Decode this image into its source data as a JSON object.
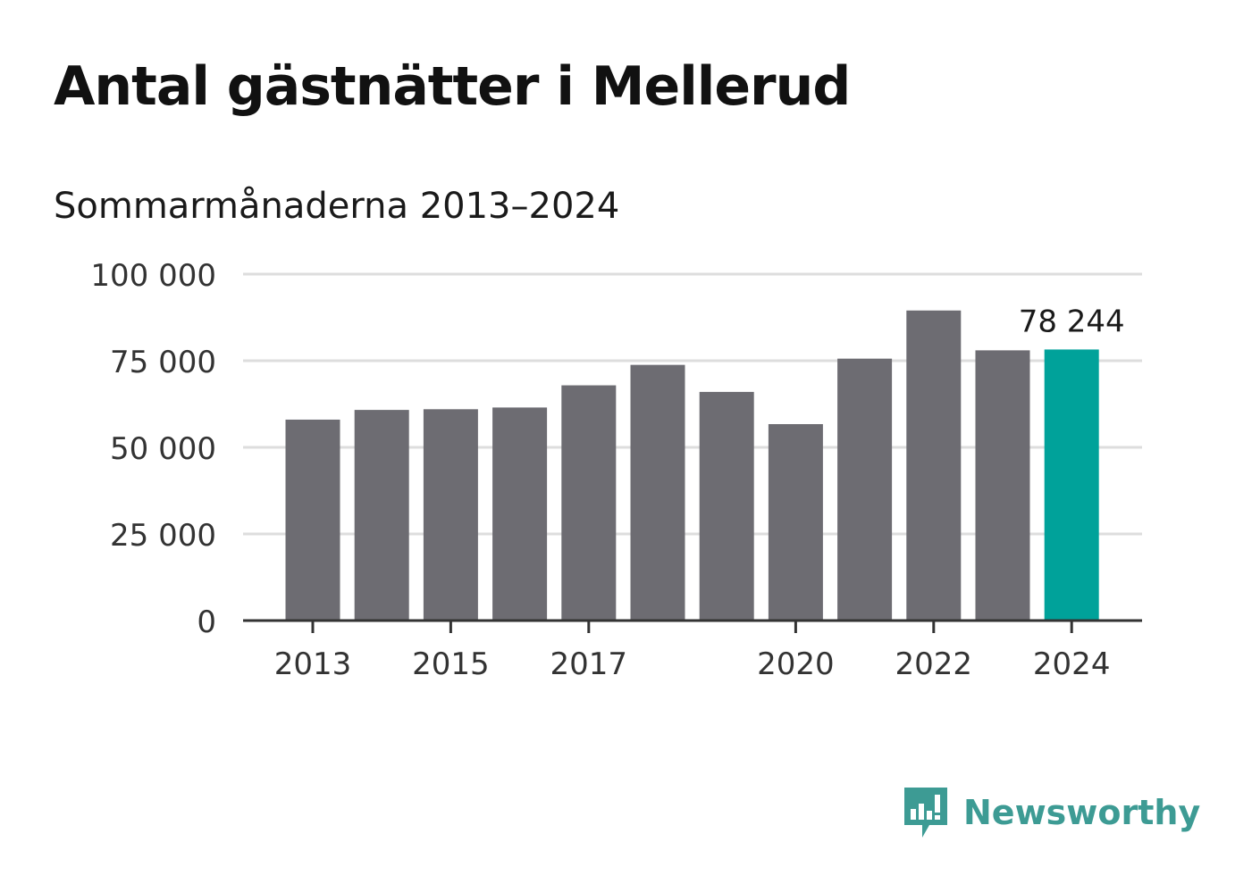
{
  "title": "Antal gästnätter i Mellerud",
  "subtitle": "Sommarmånaderna 2013–2024",
  "brand": {
    "name": "Newsworthy",
    "icon": "newsworthy-logo-icon",
    "color": "#3d9b94"
  },
  "colors": {
    "bar": "#6d6c72",
    "highlight": "#00a29a",
    "grid": "#dddddd",
    "axis": "#333333"
  },
  "chart_data": {
    "type": "bar",
    "categories": [
      "2013",
      "2014",
      "2015",
      "2016",
      "2017",
      "2018",
      "2019",
      "2020",
      "2021",
      "2022",
      "2023",
      "2024"
    ],
    "values": [
      58000,
      60800,
      61000,
      61500,
      67900,
      73800,
      66000,
      56700,
      75600,
      89500,
      78000,
      78244
    ],
    "x_tick_labels": [
      "2013",
      "2015",
      "2017",
      "2020",
      "2022",
      "2024"
    ],
    "y_ticks": [
      0,
      25000,
      50000,
      75000,
      100000
    ],
    "y_tick_labels": [
      "0",
      "25 000",
      "50 000",
      "75 000",
      "100 000"
    ],
    "ylim": [
      0,
      100000
    ],
    "highlight_category": "2024",
    "annotation": {
      "category": "2024",
      "text": "78 244"
    },
    "grid": true,
    "xlabel": "",
    "ylabel": ""
  }
}
